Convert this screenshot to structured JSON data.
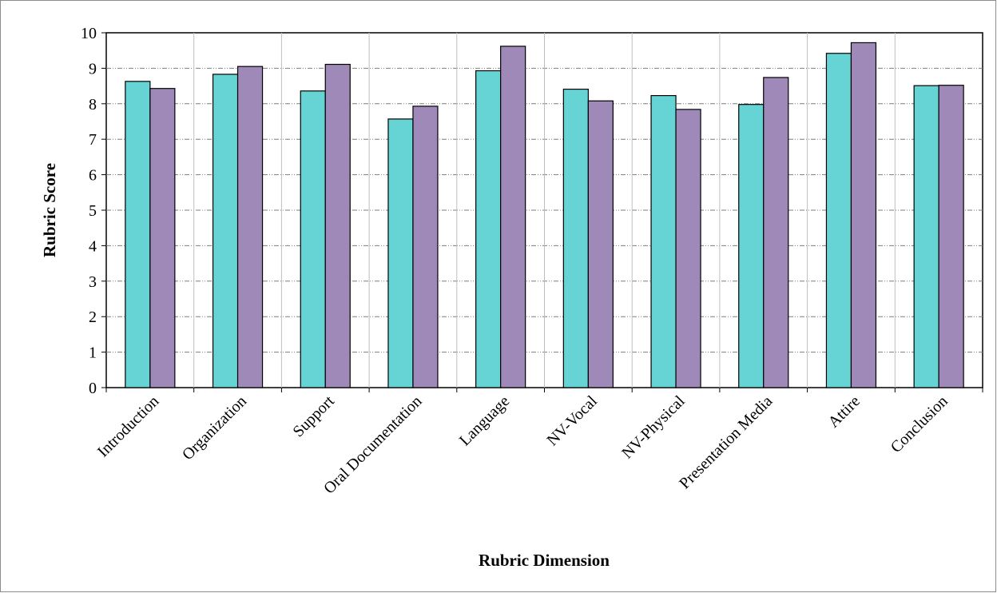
{
  "chart_data": {
    "type": "bar",
    "title": "",
    "xlabel": "Rubric Dimension",
    "ylabel": "Rubric Score",
    "ylim": [
      0,
      10
    ],
    "yticks": [
      0,
      1,
      2,
      3,
      4,
      5,
      6,
      7,
      8,
      9,
      10
    ],
    "grid": true,
    "legend": "none",
    "categories": [
      "Introduction",
      "Organization",
      "Support",
      "Oral Documentation",
      "Language",
      "NV-Vocal",
      "NV-Physical",
      "Presentation Media",
      "Attire",
      "Conclusion"
    ],
    "series": [
      {
        "color": "#66d4d4",
        "values": [
          8.63,
          8.83,
          8.36,
          7.57,
          8.93,
          8.41,
          8.23,
          7.98,
          9.42,
          8.51
        ]
      },
      {
        "color": "#9e89b8",
        "values": [
          8.43,
          9.05,
          9.11,
          7.93,
          9.62,
          8.08,
          7.84,
          8.74,
          9.72,
          8.52
        ]
      }
    ]
  }
}
